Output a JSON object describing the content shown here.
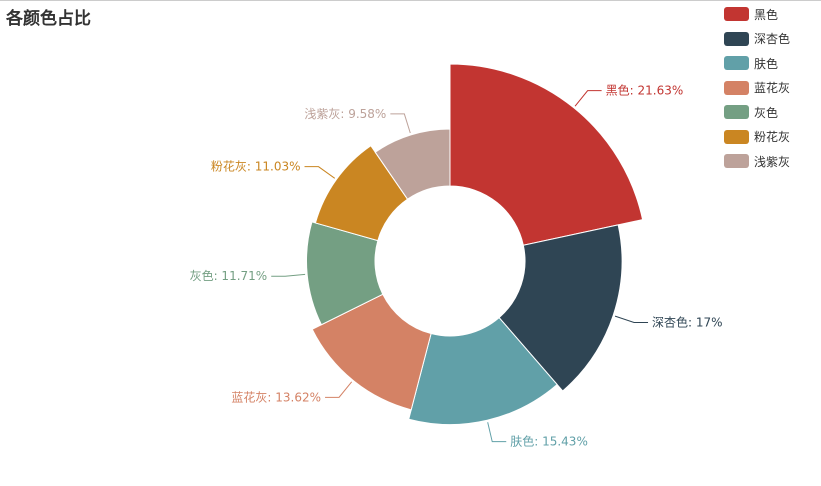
{
  "chart_data": {
    "type": "pie",
    "variant": "rose-donut",
    "title": "各颜色占比",
    "legend_position": "top-right",
    "slices": [
      {
        "name": "黑色",
        "value": 21.63,
        "label": "黑色: 21.63%",
        "color": "#c23531"
      },
      {
        "name": "深杏色",
        "value": 17,
        "label": "深杏色: 17%",
        "color": "#2f4554"
      },
      {
        "name": "肤色",
        "value": 15.43,
        "label": "肤色: 15.43%",
        "color": "#61a0a8"
      },
      {
        "name": "蓝花灰",
        "value": 13.62,
        "label": "蓝花灰: 13.62%",
        "color": "#d48265"
      },
      {
        "name": "灰色",
        "value": 11.71,
        "label": "灰色: 11.71%",
        "color": "#749f83"
      },
      {
        "name": "粉花灰",
        "value": 11.03,
        "label": "粉花灰: 11.03%",
        "color": "#ca8622"
      },
      {
        "name": "浅紫灰",
        "value": 9.58,
        "label": "浅紫灰: 9.58%",
        "color": "#bda29a"
      }
    ]
  }
}
